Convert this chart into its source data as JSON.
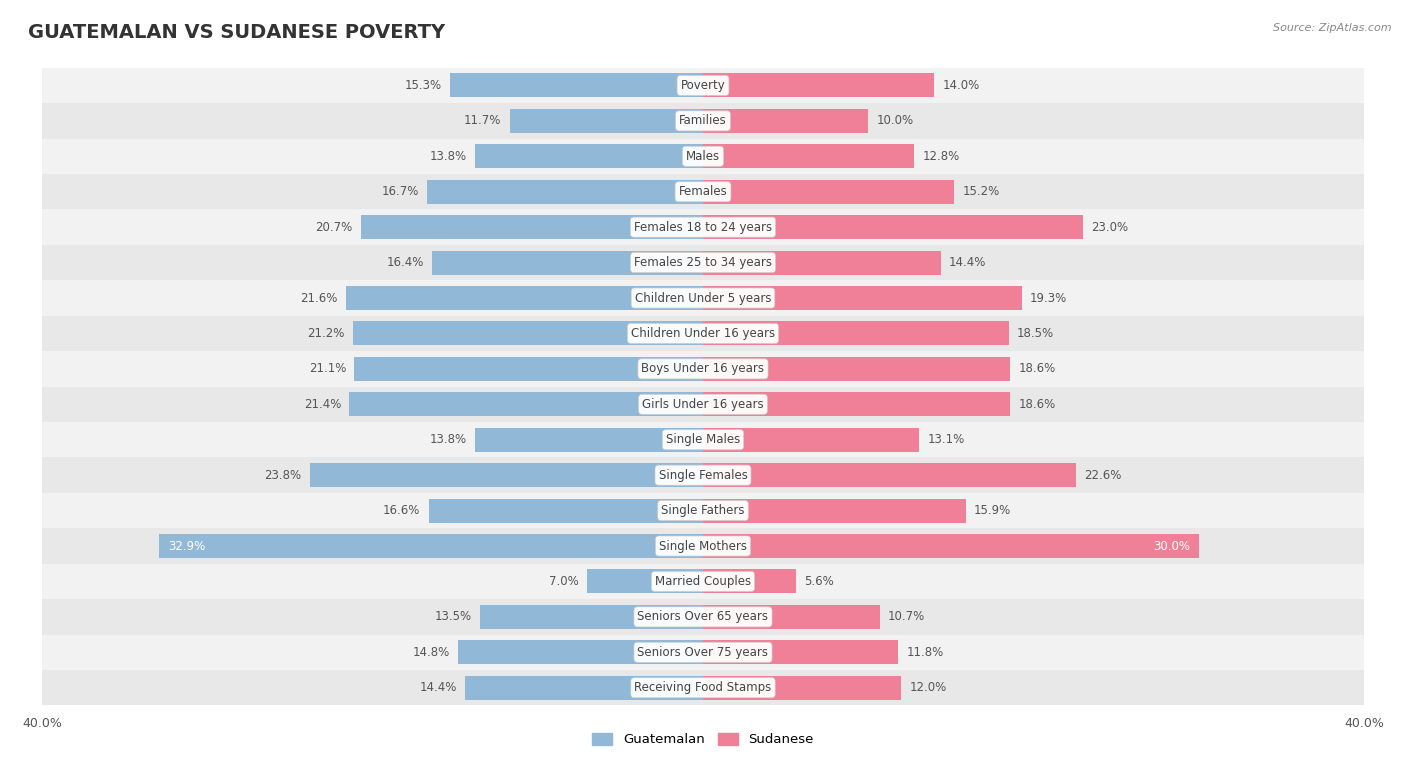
{
  "title": "GUATEMALAN VS SUDANESE POVERTY",
  "source": "Source: ZipAtlas.com",
  "categories": [
    "Poverty",
    "Families",
    "Males",
    "Females",
    "Females 18 to 24 years",
    "Females 25 to 34 years",
    "Children Under 5 years",
    "Children Under 16 years",
    "Boys Under 16 years",
    "Girls Under 16 years",
    "Single Males",
    "Single Females",
    "Single Fathers",
    "Single Mothers",
    "Married Couples",
    "Seniors Over 65 years",
    "Seniors Over 75 years",
    "Receiving Food Stamps"
  ],
  "guatemalan": [
    15.3,
    11.7,
    13.8,
    16.7,
    20.7,
    16.4,
    21.6,
    21.2,
    21.1,
    21.4,
    13.8,
    23.8,
    16.6,
    32.9,
    7.0,
    13.5,
    14.8,
    14.4
  ],
  "sudanese": [
    14.0,
    10.0,
    12.8,
    15.2,
    23.0,
    14.4,
    19.3,
    18.5,
    18.6,
    18.6,
    13.1,
    22.6,
    15.9,
    30.0,
    5.6,
    10.7,
    11.8,
    12.0
  ],
  "guatemalan_color": "#92b8d8",
  "sudanese_color": "#f08098",
  "row_colors": [
    "#f2f2f2",
    "#e8e8e8"
  ],
  "axis_max": 40.0,
  "legend_guatemalan": "Guatemalan",
  "legend_sudanese": "Sudanese",
  "title_fontsize": 14,
  "label_fontsize": 8.5,
  "value_fontsize": 8.5
}
